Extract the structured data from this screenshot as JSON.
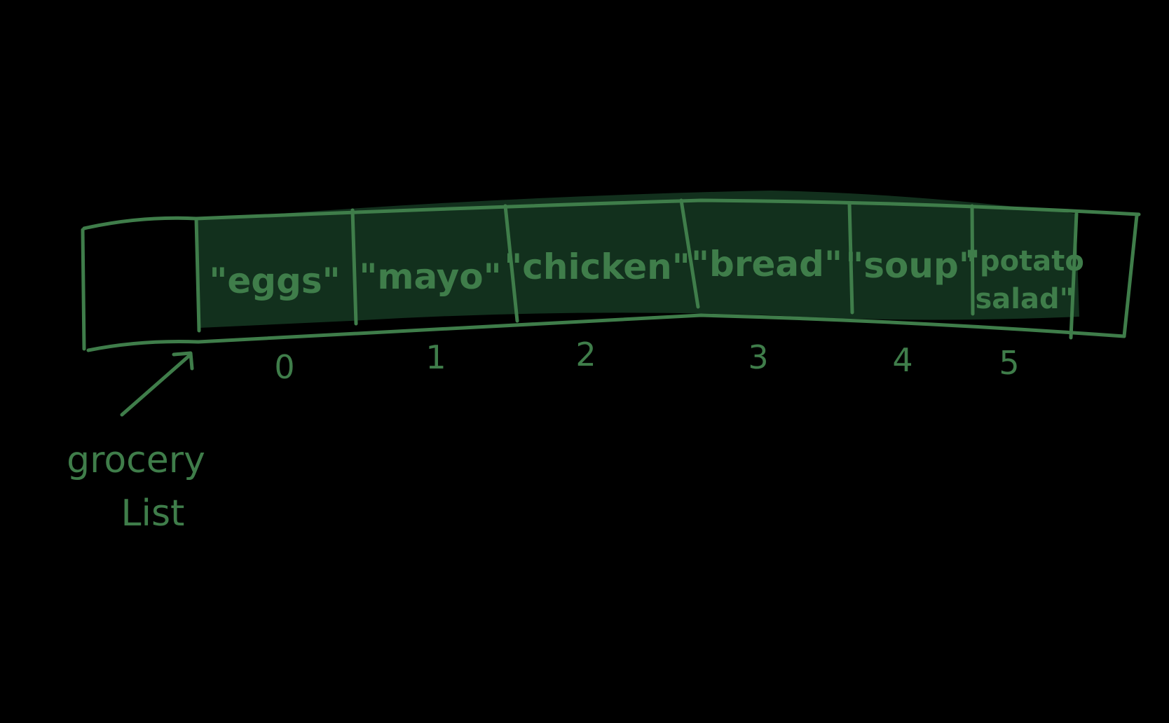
{
  "colors": {
    "background": "#000000",
    "stroke": "#3f7d4a",
    "fill": "#12301d"
  },
  "array": {
    "cells": [
      {
        "value": "\"eggs\"",
        "index": "0"
      },
      {
        "value": "\"mayo\"",
        "index": "1"
      },
      {
        "value": "\"chicken\"",
        "index": "2"
      },
      {
        "value": "\"bread\"",
        "index": "3"
      },
      {
        "value": "\"soup\"",
        "index": "4"
      },
      {
        "value_line1": "\"potato",
        "value_line2": "salad\"",
        "index": "5"
      }
    ]
  },
  "pointer_label": {
    "line1": "grocery",
    "line2": "List"
  }
}
